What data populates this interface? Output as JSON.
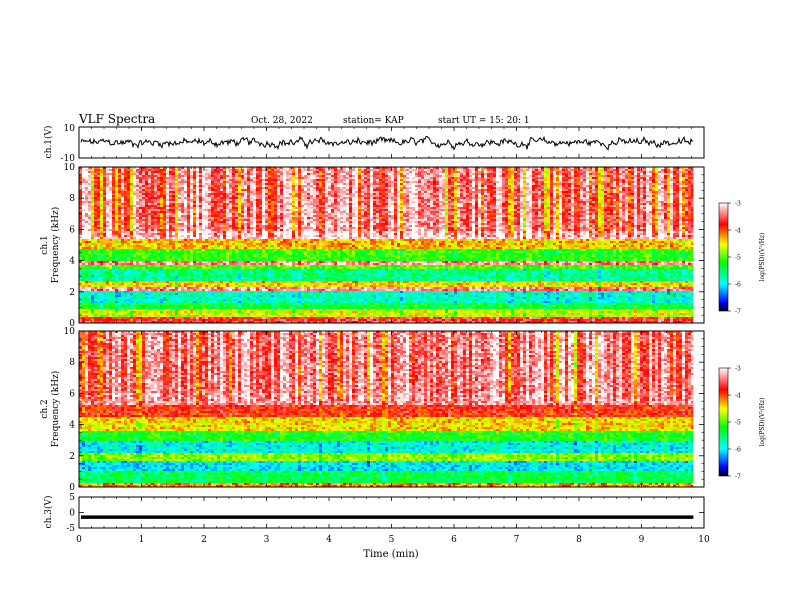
{
  "header": {
    "title": "VLF Spectra",
    "date": "Oct. 28, 2022",
    "station": "station= KAP",
    "start": "start  UT  =   15: 20: 1"
  },
  "axes": {
    "ch1_v_label": "ch.1(V)",
    "ch1_freq_label": "ch.1\nFrequency (kHz)",
    "ch2_freq_label": "ch.2\nFrequency (kHz)",
    "ch3_v_label": "ch.3(V)",
    "time_label": "Time (min)",
    "colorbar_label": "log(PSD)(V²/Hz)"
  },
  "chart_data": [
    {
      "type": "line",
      "name": "ch1-voltage",
      "ylabel": "ch.1(V)",
      "ylim": [
        -10,
        10
      ],
      "yticks": [
        10,
        -10
      ],
      "xlim": [
        0,
        10
      ],
      "data_end_min": 9.83,
      "level_v": 0,
      "amplitude_v": 3
    },
    {
      "type": "heatmap",
      "name": "ch1-spectrogram",
      "xlabel": "",
      "ylabel": "Frequency (kHz)",
      "xlim": [
        0,
        10
      ],
      "ylim": [
        0,
        10
      ],
      "yticks": [
        0,
        2,
        4,
        6,
        8,
        10
      ],
      "data_end_min": 9.83,
      "color_scale": {
        "label": "log(PSD)(V²/Hz)",
        "range": [
          -7,
          -3
        ],
        "ticks": [
          -3,
          -4,
          -5,
          -6,
          -7
        ]
      },
      "bands": [
        {
          "f": [
            0.0,
            0.4
          ],
          "level": -3.6
        },
        {
          "f": [
            0.4,
            0.9
          ],
          "level": -4.6
        },
        {
          "f": [
            0.9,
            1.3
          ],
          "level": -5.3
        },
        {
          "f": [
            1.3,
            2.1
          ],
          "level": -5.8
        },
        {
          "f": [
            2.1,
            2.3
          ],
          "level": -3.3
        },
        {
          "f": [
            2.3,
            2.7
          ],
          "level": -4.4
        },
        {
          "f": [
            2.7,
            3.4
          ],
          "level": -5.6
        },
        {
          "f": [
            3.4,
            3.7
          ],
          "level": -5.0
        },
        {
          "f": [
            3.7,
            4.0
          ],
          "level": -3.3
        },
        {
          "f": [
            4.0,
            4.7
          ],
          "level": -5.1
        },
        {
          "f": [
            4.7,
            5.4
          ],
          "level": -4.3
        },
        {
          "f": [
            5.4,
            5.9
          ],
          "level": -3.1
        },
        {
          "f": [
            5.9,
            10.0
          ],
          "level": -3.4
        }
      ]
    },
    {
      "type": "heatmap",
      "name": "ch2-spectrogram",
      "xlabel": "",
      "ylabel": "Frequency (kHz)",
      "xlim": [
        0,
        10
      ],
      "ylim": [
        0,
        10
      ],
      "yticks": [
        0,
        2,
        4,
        6,
        8,
        10
      ],
      "data_end_min": 9.83,
      "color_scale": {
        "label": "log(PSD)(V²/Hz)",
        "range": [
          -7,
          -3
        ],
        "ticks": [
          -3,
          -4,
          -5,
          -6,
          -7
        ]
      },
      "bands": [
        {
          "f": [
            0.0,
            0.3
          ],
          "level": -4.2
        },
        {
          "f": [
            0.3,
            1.0
          ],
          "level": -5.4
        },
        {
          "f": [
            1.0,
            1.7
          ],
          "level": -6.0
        },
        {
          "f": [
            1.7,
            2.2
          ],
          "level": -4.8
        },
        {
          "f": [
            2.2,
            3.0
          ],
          "level": -5.9
        },
        {
          "f": [
            3.0,
            3.6
          ],
          "level": -5.2
        },
        {
          "f": [
            3.6,
            4.5
          ],
          "level": -4.4
        },
        {
          "f": [
            4.5,
            5.2
          ],
          "level": -3.8
        },
        {
          "f": [
            5.2,
            6.0
          ],
          "level": -3.3
        },
        {
          "f": [
            6.0,
            10.0
          ],
          "level": -3.4
        }
      ]
    },
    {
      "type": "line",
      "name": "ch3-voltage",
      "ylabel": "ch.3(V)",
      "xlabel": "Time (min)",
      "ylim": [
        -5,
        5
      ],
      "yticks": [
        5,
        0,
        -5
      ],
      "xlim": [
        0,
        10
      ],
      "xticks": [
        0,
        1,
        2,
        3,
        4,
        5,
        6,
        7,
        8,
        9,
        10
      ],
      "data_end_min": 9.83,
      "level_v": -1.5,
      "amplitude_v": 0.3
    }
  ],
  "colors": {
    "frame": "#000000",
    "trace": "#000000"
  }
}
